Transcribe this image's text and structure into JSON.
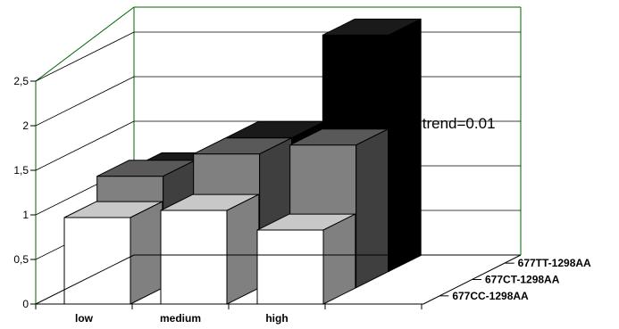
{
  "chart_data": {
    "type": "bar",
    "title": "",
    "xlabel": "",
    "ylabel": "",
    "categories": [
      "low",
      "medium",
      "high"
    ],
    "ylim": [
      0,
      2.5
    ],
    "yticks": [
      "0",
      "0,5",
      "1",
      "1,5",
      "2",
      "2,5"
    ],
    "series": [
      {
        "name": "677CC-1298AA",
        "values": [
          0.97,
          1.05,
          0.83
        ],
        "front": "#ffffff",
        "top": "#c8c8c8",
        "side": "#808080"
      },
      {
        "name": "677CT-1298AA",
        "values": [
          1.25,
          1.5,
          1.6
        ],
        "front": "#808080",
        "top": "#595959",
        "side": "#3f3f3f"
      },
      {
        "name": "677TT-1298AA",
        "values": [
          1.15,
          1.5,
          2.65
        ],
        "front": "#000000",
        "top": "#1a1a1a",
        "side": "#000000"
      }
    ],
    "annotation": "P trend=0.01",
    "grid": true,
    "view": "3d"
  }
}
